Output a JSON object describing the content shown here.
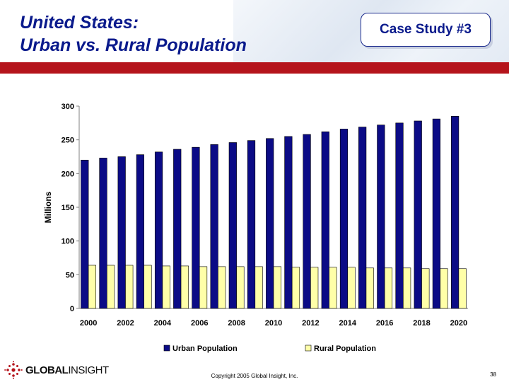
{
  "header": {
    "title_line1": "United States:",
    "title_line2": "Urban vs. Rural Population",
    "badge": "Case Study #3"
  },
  "colors": {
    "urban": "#0b0b86",
    "rural": "#ffffa8",
    "accent_bar": "#b5141c",
    "title": "#0a1a8c"
  },
  "chart_data": {
    "type": "bar",
    "title": "",
    "ylabel": "Millions",
    "xlabel": "",
    "ylim": [
      0,
      300
    ],
    "yticks": [
      0,
      50,
      100,
      150,
      200,
      250,
      300
    ],
    "categories": [
      "2000",
      "2001",
      "2002",
      "2003",
      "2004",
      "2005",
      "2006",
      "2007",
      "2008",
      "2009",
      "2010",
      "2011",
      "2012",
      "2013",
      "2014",
      "2015",
      "2016",
      "2017",
      "2018",
      "2019",
      "2020"
    ],
    "x_tick_labels": [
      "2000",
      "2002",
      "2004",
      "2006",
      "2008",
      "2010",
      "2012",
      "2014",
      "2016",
      "2018",
      "2020"
    ],
    "series": [
      {
        "name": "Urban Population",
        "values": [
          220,
          223,
          225,
          228,
          232,
          236,
          239,
          243,
          246,
          249,
          252,
          255,
          258,
          262,
          266,
          269,
          272,
          275,
          278,
          281,
          285
        ]
      },
      {
        "name": "Rural Population",
        "values": [
          64,
          64,
          64,
          64,
          63,
          63,
          62,
          62,
          62,
          62,
          62,
          61,
          61,
          61,
          61,
          60,
          60,
          60,
          59,
          59,
          59
        ]
      }
    ],
    "legend": "bottom"
  },
  "footer": {
    "logo_bold": "GLOBAL",
    "logo_light": "INSIGHT",
    "copyright": "Copyright 2005 Global Insight, Inc.",
    "page": "38"
  }
}
